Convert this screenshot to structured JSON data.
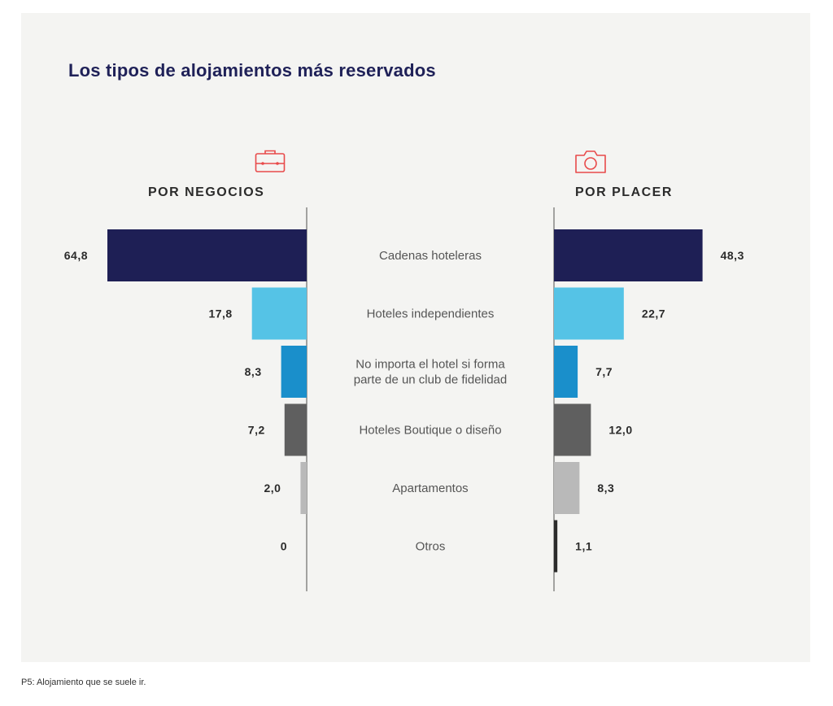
{
  "title": "Los tipos de alojamientos más reservados",
  "left_header": "POR NEGOCIOS",
  "right_header": "POR PLACER",
  "icons": {
    "left": "briefcase-icon",
    "right": "camera-icon",
    "color": "#e84a4a"
  },
  "footnote": "P5: Alojamiento que se suele ir.",
  "chart_data": {
    "type": "bar",
    "layout": "butterfly",
    "categories": [
      "Cadenas hoteleras",
      "Hoteles independientes",
      "No importa el hotel si forma parte de un club de fidelidad",
      "Hoteles Boutique o diseño",
      "Apartamentos",
      "Otros"
    ],
    "category_lines": [
      [
        "Cadenas hoteleras"
      ],
      [
        "Hoteles independientes"
      ],
      [
        "No importa el hotel si forma",
        "parte de un club de fidelidad"
      ],
      [
        "Hoteles Boutique o diseño"
      ],
      [
        "Apartamentos"
      ],
      [
        "Otros"
      ]
    ],
    "series": [
      {
        "name": "POR NEGOCIOS",
        "values": [
          64.8,
          17.8,
          8.3,
          7.2,
          2.0,
          0
        ],
        "labels": [
          "64,8",
          "17,8",
          "8,3",
          "7,2",
          "2,0",
          "0"
        ]
      },
      {
        "name": "POR PLACER",
        "values": [
          48.3,
          22.7,
          7.7,
          12.0,
          8.3,
          1.1
        ],
        "labels": [
          "48,3",
          "22,7",
          "7,7",
          "12,0",
          "8,3",
          "1,1"
        ]
      }
    ],
    "colors": [
      "#1e1f55",
      "#55c3e6",
      "#1a8fcb",
      "#5f5f5f",
      "#b9b9b9",
      "#2b2b2b"
    ],
    "title": "Los tipos de alojamientos más reservados",
    "xlabel": "",
    "ylabel": "",
    "grid": false
  }
}
